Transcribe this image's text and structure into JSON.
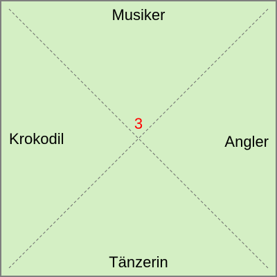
{
  "card": {
    "background_color": "#d4efc4",
    "border_color": "#7f7f7f",
    "diagonal_color": "#6b6b6b"
  },
  "labels": {
    "top": "Musiker",
    "right": "Angler",
    "bottom": "Tänzerin",
    "left": "Krokodil"
  },
  "center": {
    "number": "3",
    "color": "#ff0000"
  }
}
